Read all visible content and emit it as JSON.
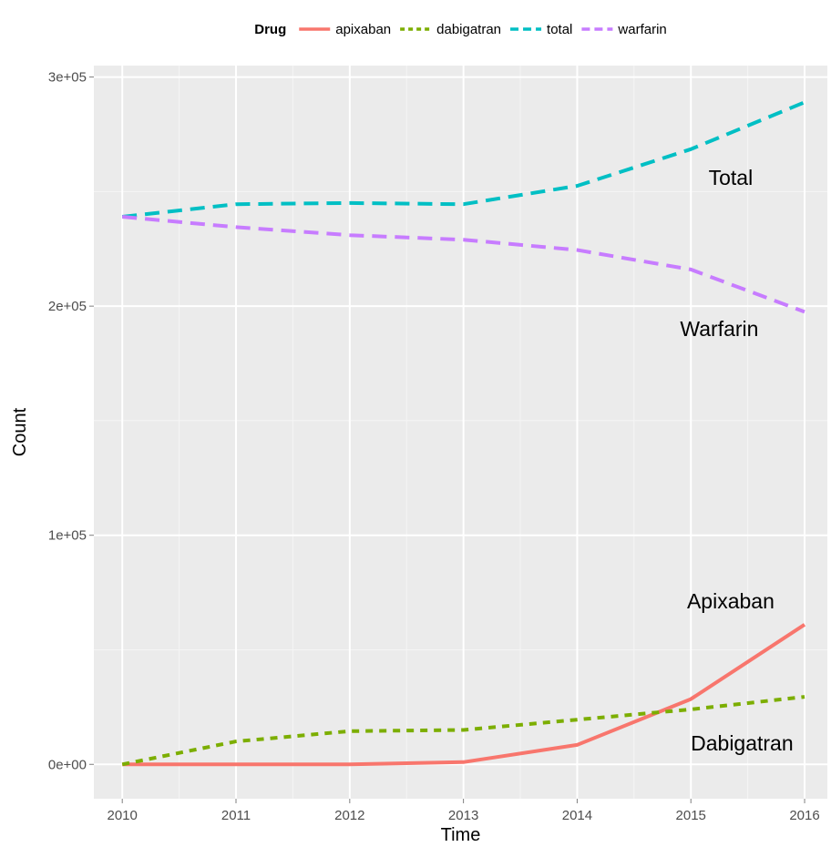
{
  "chart_data": {
    "type": "line",
    "title": "",
    "xlabel": "Time",
    "ylabel": "Count",
    "x": [
      2010,
      2011,
      2012,
      2013,
      2014,
      2015,
      2016
    ],
    "x_ticks": [
      "2010",
      "2011",
      "2012",
      "2013",
      "2014",
      "2015",
      "2016"
    ],
    "y_ticks": [
      {
        "value": 0,
        "label": "0e+00"
      },
      {
        "value": 100000,
        "label": "1e+05"
      },
      {
        "value": 200000,
        "label": "2e+05"
      },
      {
        "value": 300000,
        "label": "3e+05"
      }
    ],
    "xlim": [
      2009.75,
      2016.2
    ],
    "ylim": [
      -15000,
      305000
    ],
    "grid": true,
    "legend": {
      "title": "Drug",
      "position": "top"
    },
    "series": [
      {
        "name": "apixaban",
        "color": "#F8766D",
        "dash": "solid",
        "values": [
          0,
          0,
          0,
          1000,
          8500,
          28500,
          61000
        ]
      },
      {
        "name": "dabigatran",
        "color": "#7CAE00",
        "dash": "dotted",
        "values": [
          0,
          10000,
          14500,
          15000,
          19500,
          24000,
          29500
        ]
      },
      {
        "name": "total",
        "color": "#00BFC4",
        "dash": "dashed",
        "values": [
          239000,
          244500,
          245000,
          244500,
          252500,
          268500,
          289000
        ]
      },
      {
        "name": "warfarin",
        "color": "#C77CFF",
        "dash": "dashed",
        "values": [
          239000,
          234500,
          231000,
          229000,
          224500,
          216000,
          197500
        ]
      }
    ],
    "annotations": [
      {
        "text": "Total",
        "x": 2015.35,
        "y": 253000
      },
      {
        "text": "Warfarin",
        "x": 2015.25,
        "y": 187000
      },
      {
        "text": "Apixaban",
        "x": 2015.35,
        "y": 68000
      },
      {
        "text": "Dabigatran",
        "x": 2015.45,
        "y": 6000
      }
    ]
  }
}
